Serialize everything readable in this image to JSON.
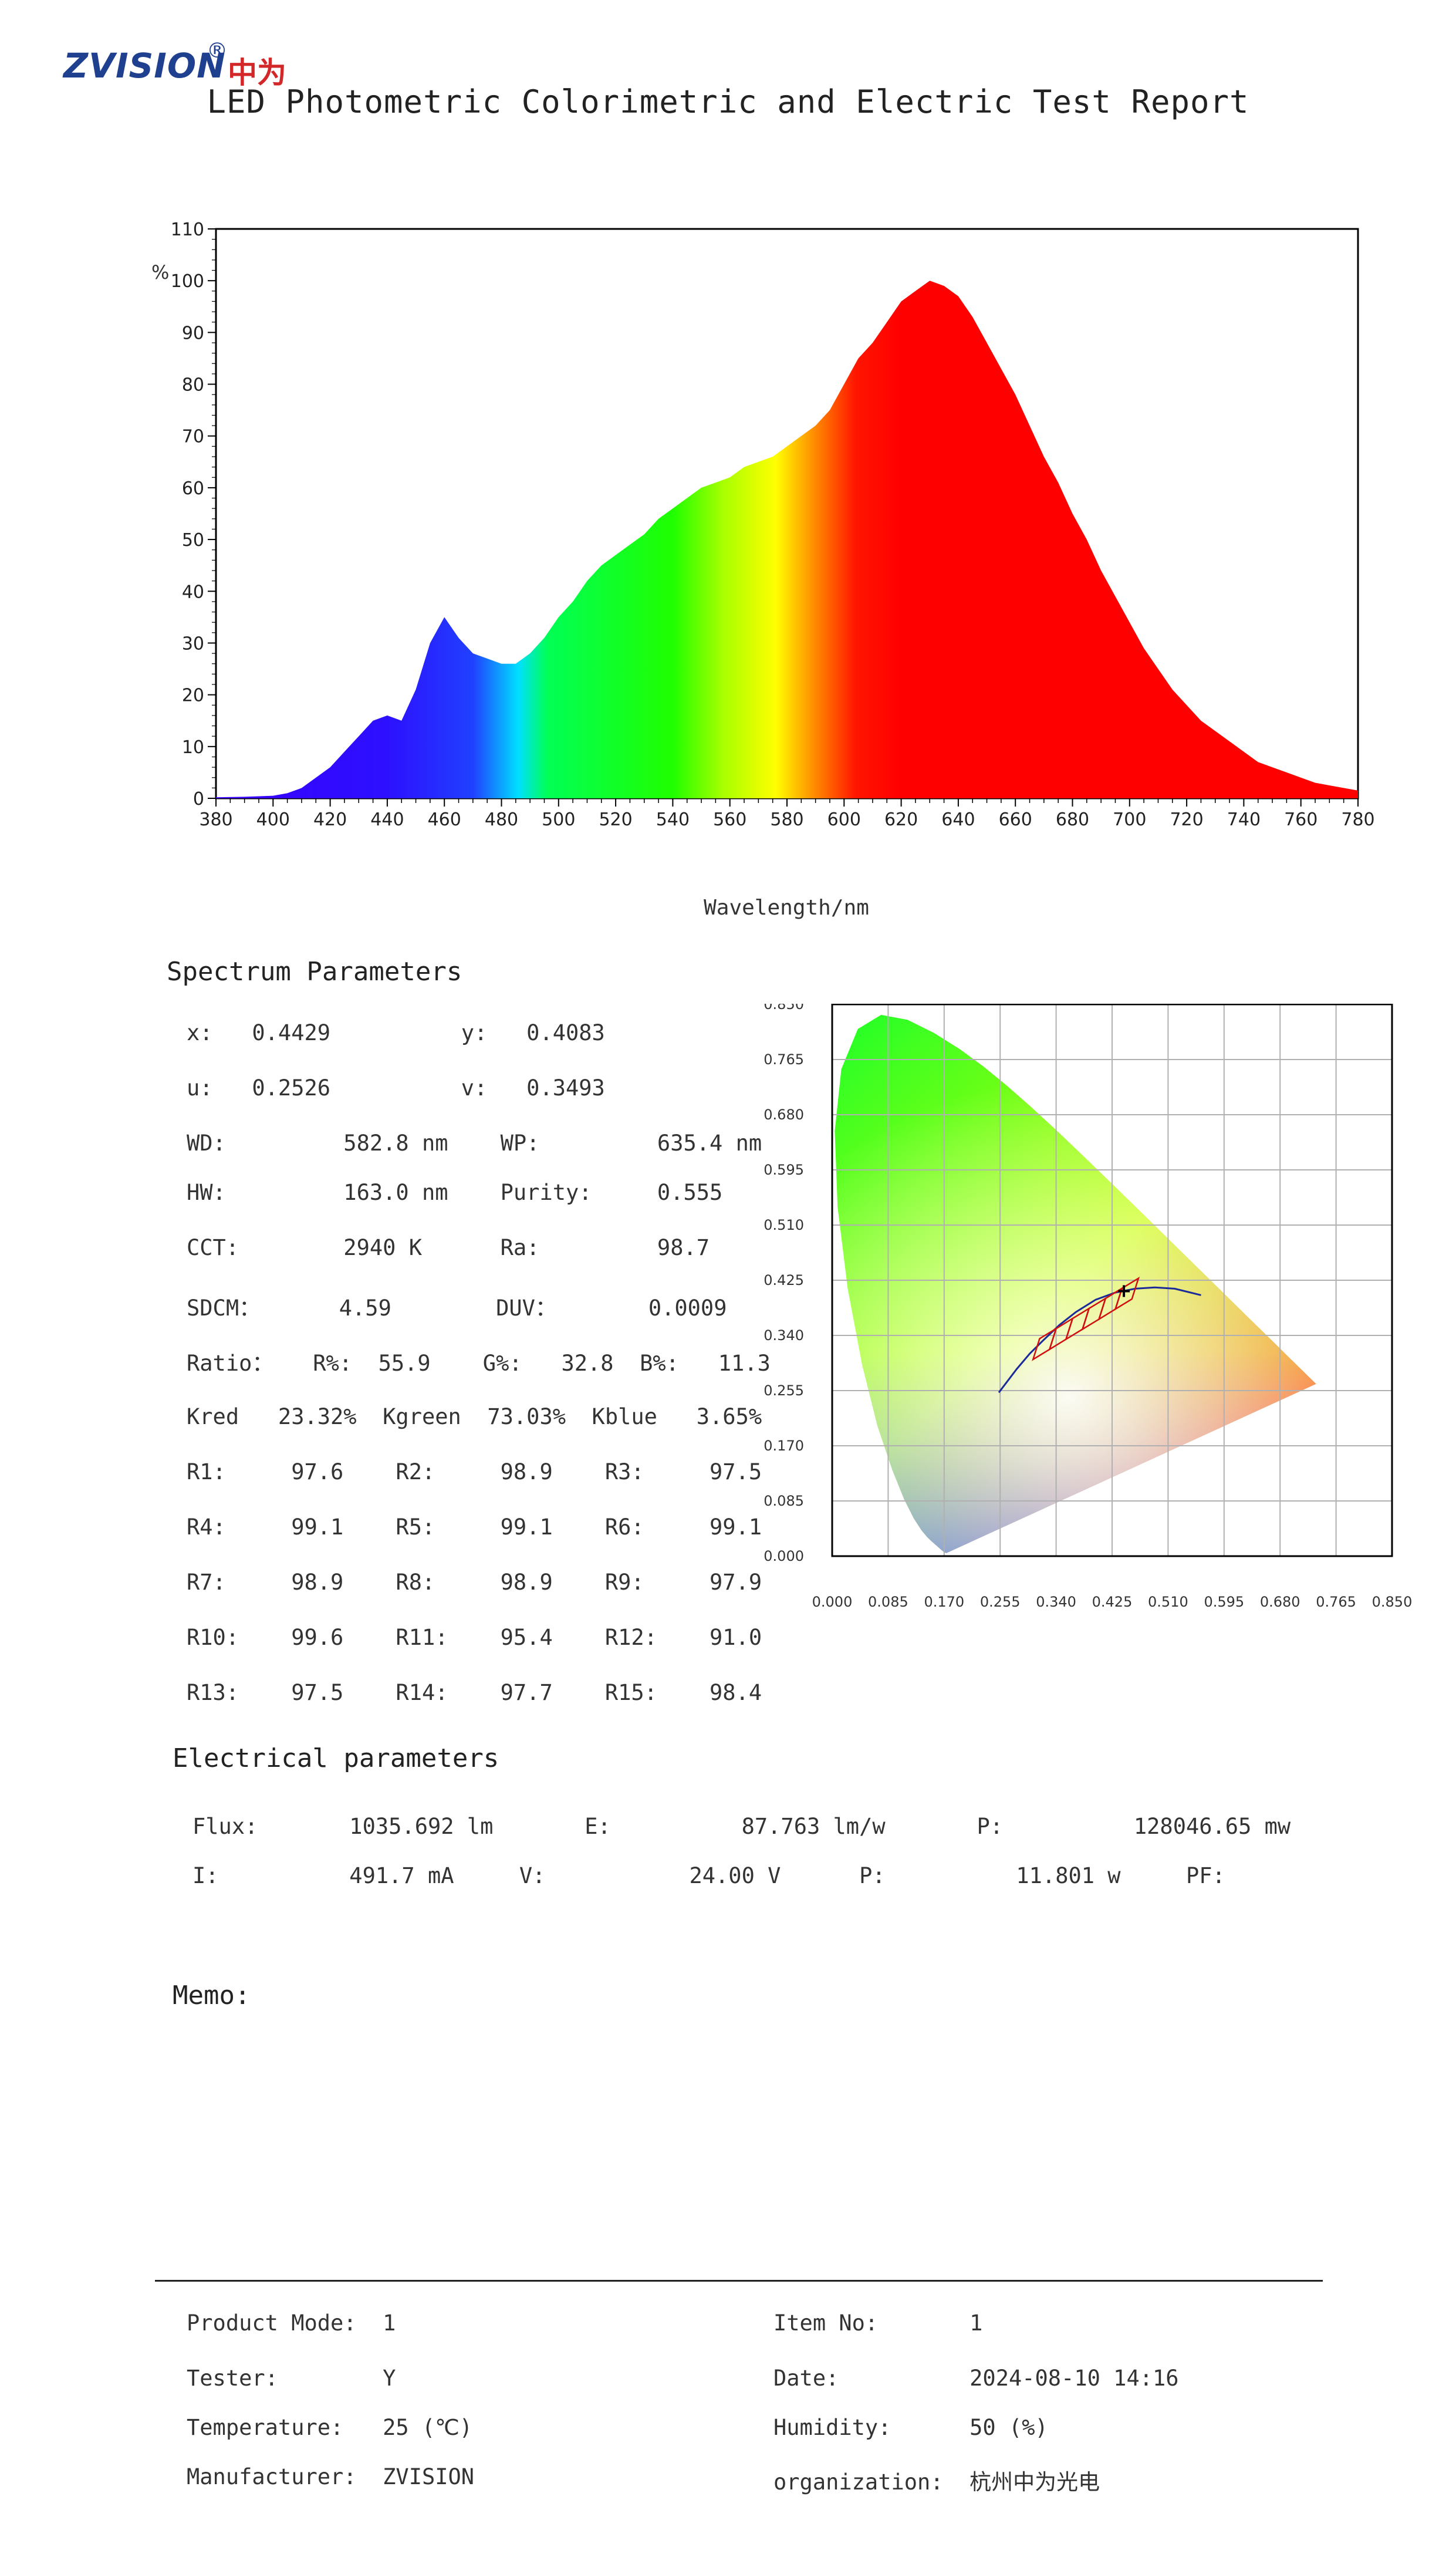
{
  "header": {
    "logo_text": "ZVISION",
    "logo_registered": "®",
    "logo_chinese": "中为",
    "title": "LED Photometric Colorimetric and Electric Test Report"
  },
  "spectrum_chart": {
    "y_unit": "%",
    "x_label": "Wavelength/nm",
    "x_ticks": [
      "380",
      "400",
      "420",
      "440",
      "460",
      "480",
      "500",
      "520",
      "540",
      "560",
      "580",
      "600",
      "620",
      "640",
      "660",
      "680",
      "700",
      "720",
      "740",
      "760",
      "780"
    ],
    "y_ticks": [
      "0",
      "10",
      "20",
      "30",
      "40",
      "50",
      "60",
      "70",
      "80",
      "90",
      "100",
      "110"
    ]
  },
  "chart_data": [
    {
      "type": "area",
      "title": "",
      "xlabel": "Wavelength/nm",
      "ylabel": "%",
      "xlim": [
        380,
        780
      ],
      "ylim": [
        0,
        110
      ],
      "grid": false,
      "x": [
        380,
        390,
        400,
        405,
        410,
        415,
        420,
        425,
        430,
        435,
        440,
        445,
        450,
        455,
        460,
        465,
        470,
        475,
        480,
        485,
        490,
        495,
        500,
        505,
        510,
        515,
        520,
        525,
        530,
        535,
        540,
        545,
        550,
        555,
        560,
        565,
        570,
        575,
        580,
        585,
        590,
        595,
        600,
        605,
        610,
        615,
        620,
        625,
        630,
        635,
        640,
        645,
        650,
        655,
        660,
        665,
        670,
        675,
        680,
        685,
        690,
        695,
        700,
        705,
        710,
        715,
        720,
        725,
        730,
        735,
        740,
        745,
        750,
        755,
        760,
        765,
        770,
        775,
        780
      ],
      "series": [
        {
          "values": [
            0.2,
            0.3,
            0.5,
            1,
            2,
            4,
            6,
            9,
            12,
            15,
            16,
            15,
            21,
            30,
            35,
            31,
            28,
            27,
            26,
            26,
            28,
            31,
            35,
            38,
            42,
            45,
            47,
            49,
            51,
            54,
            56,
            58,
            60,
            61,
            62,
            64,
            65,
            66,
            68,
            70,
            72,
            75,
            80,
            85,
            88,
            92,
            96,
            98,
            100,
            99,
            97,
            93,
            88,
            83,
            78,
            72,
            66,
            61,
            55,
            50,
            44,
            39,
            34,
            29,
            25,
            21,
            18,
            15,
            13,
            11,
            9,
            7,
            6,
            5,
            4,
            3,
            2.5,
            2,
            1.5
          ]
        }
      ]
    },
    {
      "type": "scatter",
      "title": "",
      "xlabel": "",
      "ylabel": "",
      "xlim": [
        0,
        0.85
      ],
      "ylim": [
        0,
        0.85
      ],
      "grid": true,
      "x_ticks": [
        "0.000",
        "0.085",
        "0.170",
        "0.255",
        "0.340",
        "0.425",
        "0.510",
        "0.595",
        "0.680",
        "0.765",
        "0.850"
      ],
      "y_ticks": [
        "0.000",
        "0.085",
        "0.170",
        "0.255",
        "0.340",
        "0.425",
        "0.510",
        "0.595",
        "0.680",
        "0.765",
        "0.850"
      ],
      "series": [
        {
          "name": "measured point",
          "x": [
            0.4429
          ],
          "y": [
            0.4083
          ]
        }
      ]
    }
  ],
  "spectrum_params": {
    "heading": "Spectrum Parameters",
    "lines": [
      "x:   0.4429          y:   0.4083",
      "u:   0.2526          v:   0.3493",
      "WD:         582.8 nm    WP:         635.4 nm",
      "HW:         163.0 nm    Purity:     0.555",
      "CCT:        2940 K      Ra:         98.7",
      "SDCM：      4.59        DUV：       0.0009",
      "Ratio：   R%:  55.9    G%:   32.8  B%:   11.3",
      "Kred   23.32%  Kgreen  73.03%  Kblue   3.65%",
      "R1:     97.6    R2:     98.9    R3:     97.5",
      "R4:     99.1    R5:     99.1    R6:     99.1",
      "R7:     98.9    R8:     98.9    R9:     97.9",
      "R10:    99.6    R11:    95.4    R12:    91.0",
      "R13:    97.5    R14:    97.7    R15:    98.4"
    ]
  },
  "electrical": {
    "heading": "Electrical parameters",
    "line1": "Flux:       1035.692 lm       E:          87.763 lm/w       P:          128046.65 mw",
    "line2": "I:          491.7 mA     V:           24.00 V      P:          11.801 w     PF:"
  },
  "memo": {
    "label": "Memo:"
  },
  "footer": {
    "rows_left": [
      "Product Mode:  1",
      "Tester:        Y",
      "Temperature:   25 (℃)",
      "Manufacturer:  ZVISION"
    ],
    "rows_right": [
      "Item No:       1",
      "Date:          2024-08-10 14:16",
      "Humidity:      50 (%)",
      "organization:  杭州中为光电"
    ]
  }
}
